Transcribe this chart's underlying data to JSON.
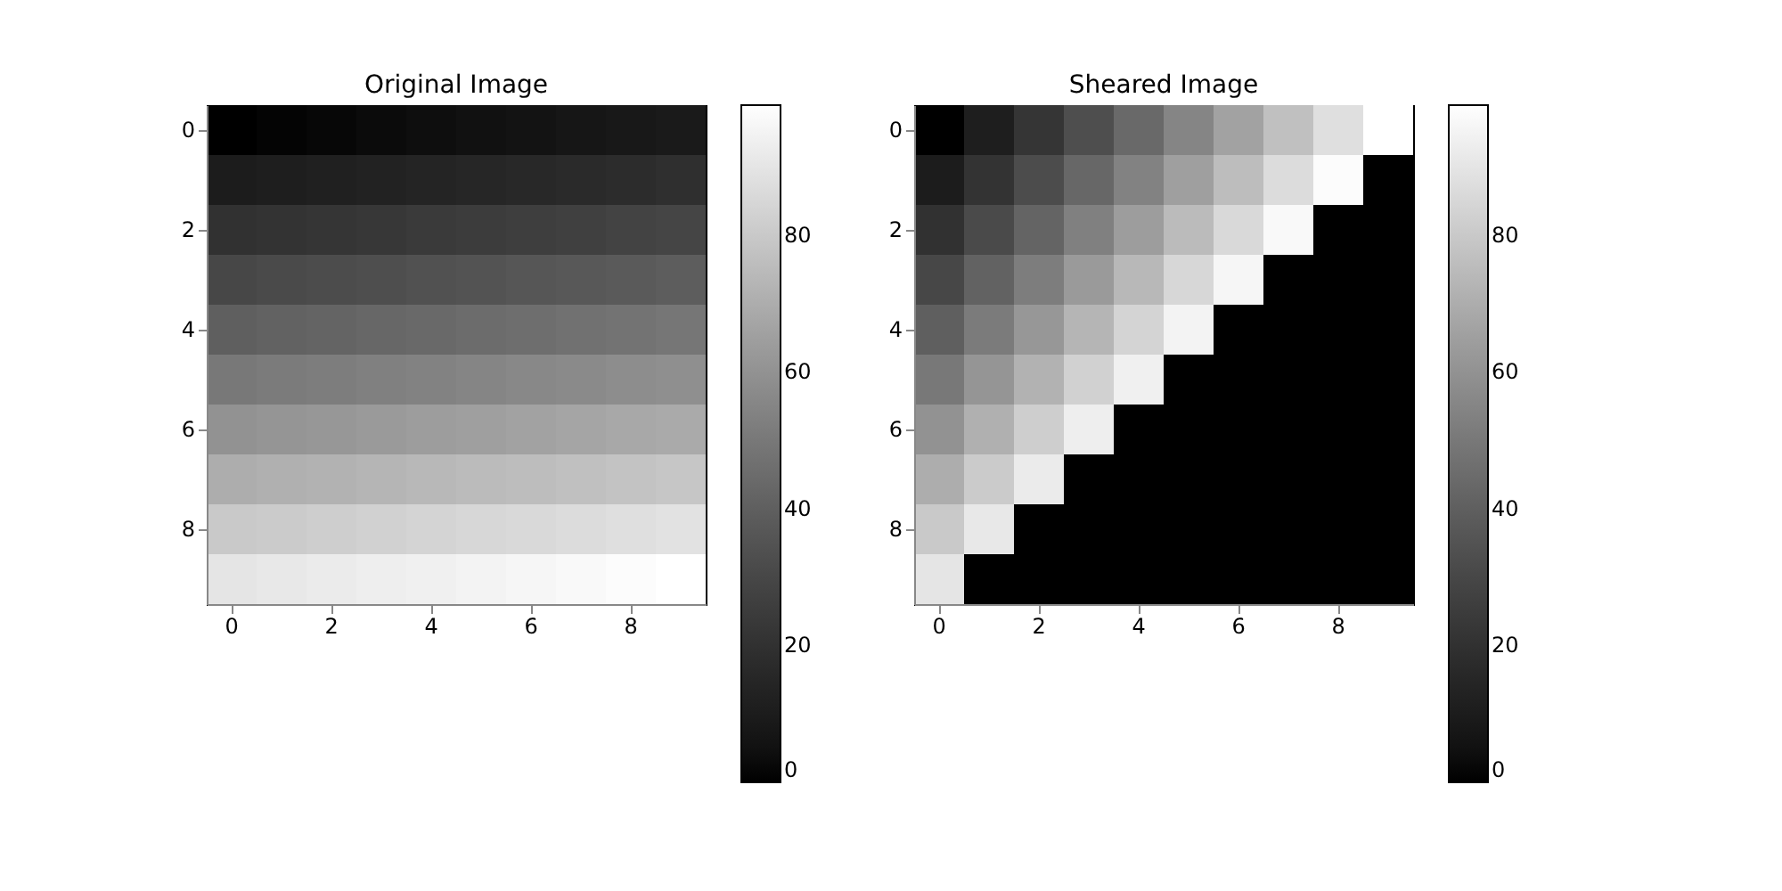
{
  "chart_data": [
    {
      "type": "heatmap",
      "title": "Original Image",
      "categories": [
        "0",
        null,
        "2",
        null,
        "4",
        null,
        "6",
        null,
        "8",
        null
      ],
      "y_categories": [
        "0",
        null,
        "2",
        null,
        "4",
        null,
        "6",
        null,
        "8",
        null
      ],
      "cells": [
        [
          0,
          1,
          2,
          3,
          4,
          5,
          6,
          7,
          8,
          9
        ],
        [
          10,
          11,
          12,
          13,
          14,
          15,
          16,
          17,
          18,
          19
        ],
        [
          20,
          21,
          22,
          23,
          24,
          25,
          26,
          27,
          28,
          29
        ],
        [
          30,
          31,
          32,
          33,
          34,
          35,
          36,
          37,
          38,
          39
        ],
        [
          40,
          41,
          42,
          43,
          44,
          45,
          46,
          47,
          48,
          49
        ],
        [
          50,
          51,
          52,
          53,
          54,
          55,
          56,
          57,
          58,
          59
        ],
        [
          60,
          61,
          62,
          63,
          64,
          65,
          66,
          67,
          68,
          69
        ],
        [
          70,
          71,
          72,
          73,
          74,
          75,
          76,
          77,
          78,
          79
        ],
        [
          80,
          81,
          82,
          83,
          84,
          85,
          86,
          87,
          88,
          89
        ],
        [
          90,
          91,
          92,
          93,
          94,
          95,
          96,
          97,
          98,
          99
        ]
      ],
      "clim": [
        0,
        99
      ],
      "cticks": [
        0,
        20,
        40,
        60,
        80
      ]
    },
    {
      "type": "heatmap",
      "title": "Sheared Image",
      "categories": [
        "0",
        null,
        "2",
        null,
        "4",
        null,
        "6",
        null,
        "8",
        null
      ],
      "y_categories": [
        "0",
        null,
        "2",
        null,
        "4",
        null,
        "6",
        null,
        "8",
        null
      ],
      "cells": [
        [
          0,
          11,
          22,
          33,
          44,
          55,
          66,
          77,
          88,
          99
        ],
        [
          10,
          21,
          32,
          43,
          54,
          65,
          76,
          87,
          98,
          0
        ],
        [
          20,
          31,
          42,
          53,
          64,
          75,
          86,
          97,
          0,
          0
        ],
        [
          30,
          41,
          52,
          63,
          74,
          85,
          96,
          0,
          0,
          0
        ],
        [
          40,
          51,
          62,
          73,
          84,
          95,
          0,
          0,
          0,
          0
        ],
        [
          50,
          61,
          72,
          83,
          94,
          0,
          0,
          0,
          0,
          0
        ],
        [
          60,
          71,
          82,
          93,
          0,
          0,
          0,
          0,
          0,
          0
        ],
        [
          70,
          81,
          92,
          0,
          0,
          0,
          0,
          0,
          0,
          0
        ],
        [
          80,
          91,
          0,
          0,
          0,
          0,
          0,
          0,
          0,
          0
        ],
        [
          90,
          0,
          0,
          0,
          0,
          0,
          0,
          0,
          0,
          0
        ]
      ],
      "clim": [
        0,
        99
      ],
      "cticks": [
        0,
        20,
        40,
        60,
        80
      ]
    }
  ]
}
